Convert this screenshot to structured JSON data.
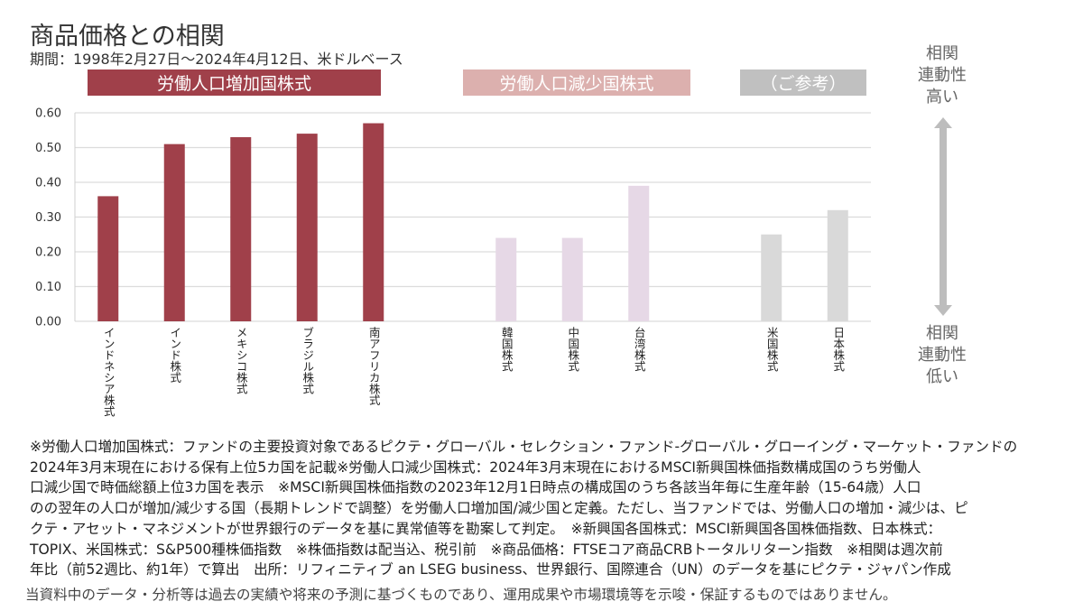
{
  "title": "商品価格との相関",
  "subtitle": "期間：1998年2月27日～2024年4月12日、米ドルベース",
  "groups": [
    {
      "label": "労働人口増加国株式",
      "color": "#a0404a"
    },
    {
      "label": "労働人口減少国株式",
      "color": "#dcb0ae"
    },
    {
      "label": "（ご参考）",
      "color": "#c0c0c0"
    }
  ],
  "side_labels": {
    "top": [
      "相関",
      "連動性",
      "高い"
    ],
    "bottom": [
      "相関",
      "連動性",
      "低い"
    ],
    "arrow_icon": "double-arrow-vertical",
    "arrow_color": "#bdbdbd"
  },
  "chart_data": {
    "type": "bar",
    "title": "",
    "xlabel": "",
    "ylabel": "",
    "ylim": [
      0,
      0.6
    ],
    "yticks": [
      "0.00",
      "0.10",
      "0.20",
      "0.30",
      "0.40",
      "0.50",
      "0.60"
    ],
    "grid": true,
    "categories": [
      "インドネシア株式",
      "インド株式",
      "メキシコ株式",
      "ブラジル株式",
      "南アフリカ株式",
      "",
      "韓国株式",
      "中国株式",
      "台湾株式",
      "",
      "米国株式",
      "日本株式"
    ],
    "values": [
      0.36,
      0.51,
      0.53,
      0.54,
      0.57,
      null,
      0.24,
      0.24,
      0.39,
      null,
      0.25,
      0.32
    ],
    "bar_colors": [
      "#a0404a",
      "#a0404a",
      "#a0404a",
      "#a0404a",
      "#a0404a",
      null,
      "#e6d8e6",
      "#e6d8e6",
      "#e6d8e6",
      null,
      "#d9d9d9",
      "#d9d9d9"
    ]
  },
  "notes": [
    "※労働人口増加国株式：ファンドの主要投資対象であるピクテ・グローバル・セレクション・ファンド-グローバル・グローイング・マーケット・ファンドの",
    "2024年3月末現在における保有上位5カ国を記載※労働人口減少国株式：2024年3月末現在におけるMSCI新興国株価指数構成国のうち労働人",
    "口減少国で時価総額上位3カ国を表示　※MSCI新興国株価指数の2023年12月1日時点の構成国のうち各該当年毎に生産年齢（15-64歳）人口",
    "のの翌年の人口が増加/減少する国（長期トレンドで調整）を労働人口増加国/減少国と定義。ただし、当ファンドでは、労働人口の増加・減少は、ピ",
    "クテ・アセット・マネジメントが世界銀行のデータを基に異常値等を勘案して判定。　※新興国各国株式：MSCI新興国各国株価指数、日本株式：",
    "TOPIX、米国株式：S&P500種株価指数　※株価指数は配当込、税引前　※商品価格：FTSEコア商品CRBトータルリターン指数　※相関は週次前",
    "年比（前52週比、約1年）で算出　出所：リフィニティブ an LSEG business、世界銀行、国際連合（UN）のデータを基にピクテ・ジャパン作成"
  ],
  "disclaimer": "当資料中のデータ・分析等は過去の実績や将来の予測に基づくものであり、運用成果や市場環境等を示唆・保証するものではありません。"
}
